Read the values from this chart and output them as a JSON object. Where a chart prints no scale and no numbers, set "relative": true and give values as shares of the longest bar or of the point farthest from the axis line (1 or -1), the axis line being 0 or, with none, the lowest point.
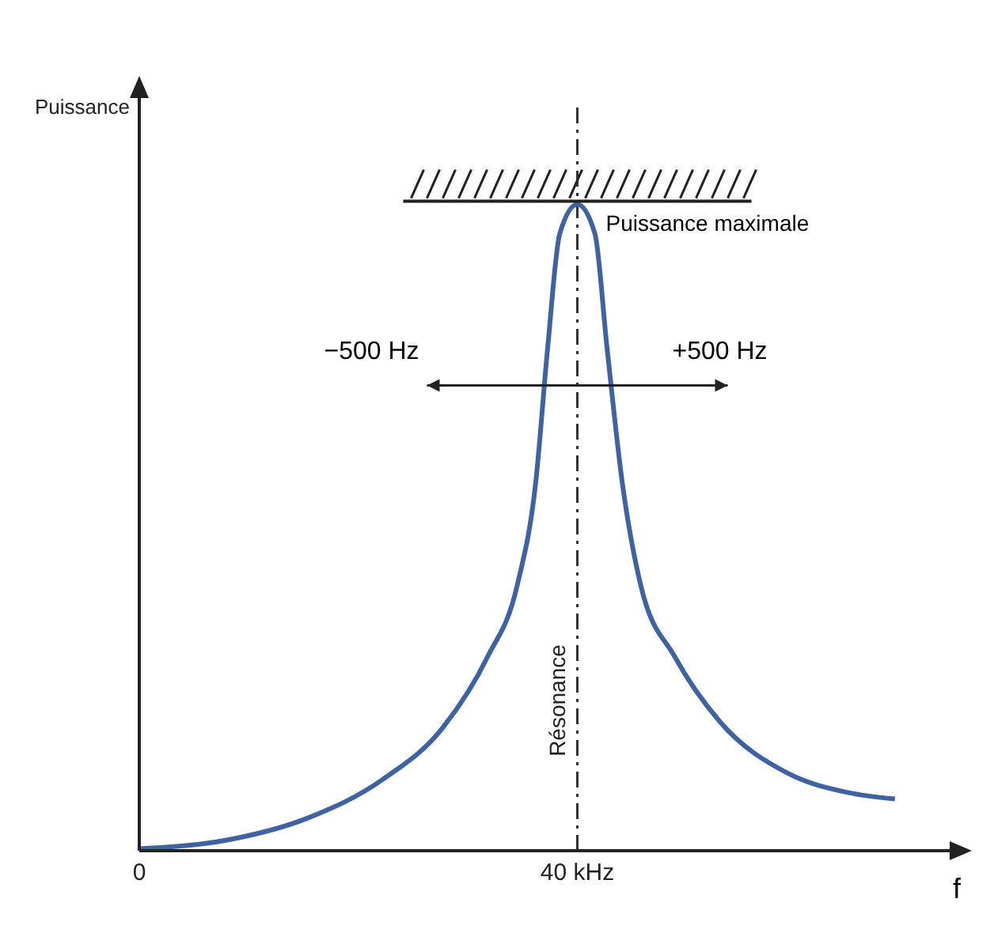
{
  "chart_data": {
    "type": "line",
    "relative": true,
    "xlabel": "f",
    "ylabel": "Puissance",
    "x": [
      0,
      8.5,
      15.3,
      22.2,
      27.7,
      31.8,
      34.5,
      36.2,
      37.3,
      38.4,
      40,
      41.6,
      42.7,
      44.1,
      45.8,
      48.9,
      53,
      59.2,
      64.7,
      69
    ],
    "series": [
      {
        "color": "#3f62a0",
        "values": [
          0.003,
          0.018,
          0.05,
          0.11,
          0.19,
          0.3,
          0.41,
          0.57,
          0.78,
          0.955,
          1,
          0.955,
          0.78,
          0.57,
          0.41,
          0.3,
          0.2,
          0.12,
          0.09,
          0.08
        ]
      }
    ],
    "xlim": [
      0,
      74
    ],
    "xticks": [
      {
        "value": 0,
        "label": "0"
      },
      {
        "value": 40,
        "label": "40 kHz"
      }
    ],
    "ref_lines": [
      {
        "axis": "x",
        "value": 40,
        "label": "Résonance",
        "line_style": "dashed",
        "color": "#333333"
      }
    ],
    "annotations": [
      "Puissance maximale",
      "−500 Hz",
      "+500 Hz"
    ],
    "grid": false,
    "legend": false,
    "marker": "none",
    "line_style": "solid"
  }
}
